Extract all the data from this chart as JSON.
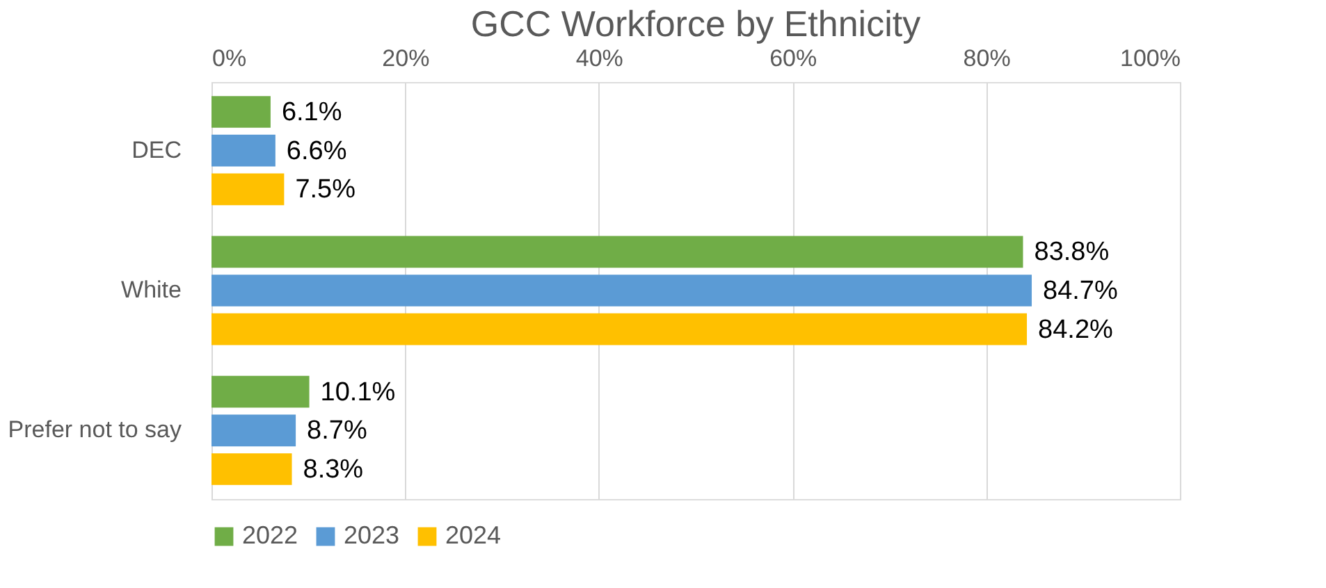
{
  "chart_data": {
    "type": "bar",
    "orientation": "horizontal",
    "title": "GCC Workforce by Ethnicity",
    "categories": [
      "DEC",
      "White",
      "Prefer not to say"
    ],
    "series": [
      {
        "name": "2022",
        "color": "#70ad47",
        "values": [
          6.1,
          83.8,
          10.1
        ],
        "value_labels": [
          "6.1%",
          "83.8%",
          "10.1%"
        ]
      },
      {
        "name": "2023",
        "color": "#5b9bd5",
        "values": [
          6.6,
          84.7,
          8.7
        ],
        "value_labels": [
          "6.6%",
          "84.7%",
          "8.7%"
        ]
      },
      {
        "name": "2024",
        "color": "#ffc000",
        "values": [
          7.5,
          84.2,
          8.3
        ],
        "value_labels": [
          "7.5%",
          "84.2%",
          "8.3%"
        ]
      }
    ],
    "xlim": [
      0,
      100
    ],
    "xticks": [
      {
        "value": 0,
        "label": "0%"
      },
      {
        "value": 20,
        "label": "20%"
      },
      {
        "value": 40,
        "label": "40%"
      },
      {
        "value": 60,
        "label": "60%"
      },
      {
        "value": 80,
        "label": "80%"
      },
      {
        "value": 100,
        "label": "100%"
      }
    ],
    "grid": "x",
    "legend": "bottom"
  }
}
